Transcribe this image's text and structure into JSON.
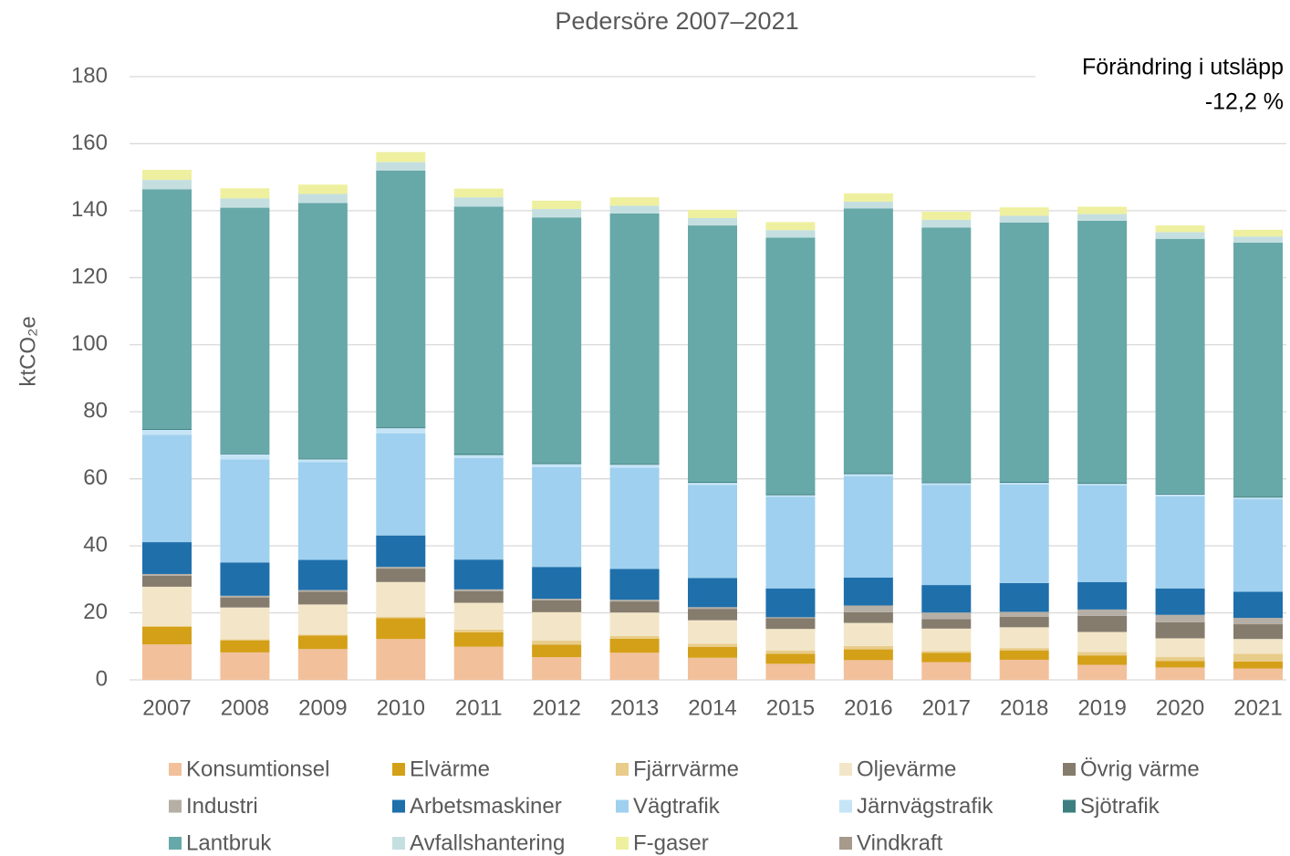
{
  "chart_data": {
    "type": "bar",
    "stacked": true,
    "title": "Pedersöre 2007–2021",
    "y_label": "ktCO₂e",
    "annotation": [
      "Förändring i utsläpp",
      "-12,2 %"
    ],
    "categories": [
      "2007",
      "2008",
      "2009",
      "2010",
      "2011",
      "2012",
      "2013",
      "2014",
      "2015",
      "2016",
      "2017",
      "2018",
      "2019",
      "2020",
      "2021"
    ],
    "ylim": [
      0,
      180
    ],
    "yticks": [
      0,
      20,
      40,
      60,
      80,
      100,
      120,
      140,
      160,
      180
    ],
    "grid": true,
    "legend": "bottom",
    "series": [
      {
        "name": "Konsumtionsel",
        "color": "#f2c09b",
        "values": [
          10.6,
          8.2,
          9.2,
          12.2,
          9.9,
          6.8,
          8.1,
          6.6,
          4.8,
          5.9,
          5.3,
          6.0,
          4.5,
          3.7,
          3.4
        ]
      },
      {
        "name": "Elvärme",
        "color": "#d4a017",
        "values": [
          5.2,
          3.6,
          4.0,
          6.2,
          4.3,
          3.7,
          4.2,
          3.2,
          3.0,
          3.2,
          2.8,
          2.8,
          2.8,
          1.9,
          2.1
        ]
      },
      {
        "name": "Fjärrvärme",
        "color": "#e8cc8a",
        "values": [
          0.3,
          0.3,
          0.3,
          0.4,
          0.8,
          1.2,
          0.8,
          1.0,
          1.0,
          1.0,
          0.5,
          0.7,
          1.0,
          1.2,
          2.3
        ]
      },
      {
        "name": "Oljevärme",
        "color": "#f3e6c8",
        "values": [
          11.7,
          9.5,
          9.0,
          10.4,
          8.0,
          8.5,
          7.0,
          7.0,
          6.4,
          6.9,
          6.7,
          6.2,
          6.0,
          5.6,
          4.4
        ]
      },
      {
        "name": "Övrig värme",
        "color": "#857c6e",
        "values": [
          3.3,
          3.0,
          3.8,
          4.0,
          3.5,
          3.5,
          3.3,
          3.4,
          3.2,
          3.2,
          2.8,
          3.1,
          4.8,
          4.8,
          4.4
        ]
      },
      {
        "name": "Industri",
        "color": "#b5afa5",
        "values": [
          0.5,
          0.5,
          0.5,
          0.5,
          0.5,
          0.5,
          0.5,
          0.5,
          0.3,
          2.0,
          2.0,
          1.5,
          1.9,
          2.2,
          1.9
        ]
      },
      {
        "name": "Arbetsmaskiner",
        "color": "#1f6fab",
        "values": [
          9.5,
          9.9,
          9.0,
          9.4,
          8.9,
          9.5,
          9.2,
          8.7,
          8.6,
          8.3,
          8.2,
          8.6,
          8.2,
          7.9,
          7.8
        ]
      },
      {
        "name": "Vägtrafik",
        "color": "#9fd0ef",
        "values": [
          32.0,
          30.8,
          29.2,
          30.5,
          30.3,
          29.8,
          30.2,
          27.8,
          27.3,
          30.3,
          29.9,
          29.4,
          28.8,
          27.5,
          27.6
        ]
      },
      {
        "name": "Järnvägstrafik",
        "color": "#c5e5f7",
        "values": [
          1.5,
          1.5,
          0.8,
          1.5,
          0.9,
          0.9,
          0.9,
          0.6,
          0.5,
          0.6,
          0.5,
          0.5,
          0.5,
          0.5,
          0.5
        ]
      },
      {
        "name": "Sjötrafik",
        "color": "#3d7f80",
        "values": [
          0.3,
          0.3,
          0.3,
          0.3,
          0.3,
          0.3,
          0.3,
          0.3,
          0.3,
          0.3,
          0.3,
          0.3,
          0.3,
          0.3,
          0.3
        ]
      },
      {
        "name": "Lantbruk",
        "color": "#67a8a8",
        "values": [
          71.5,
          73.3,
          76.2,
          76.6,
          73.8,
          73.3,
          74.7,
          76.5,
          76.6,
          79.0,
          76.0,
          77.4,
          78.2,
          76.0,
          75.8
        ]
      },
      {
        "name": "Avfallshantering",
        "color": "#c5dfe0",
        "values": [
          2.8,
          2.8,
          2.7,
          2.5,
          2.8,
          2.5,
          2.3,
          2.2,
          2.2,
          2.0,
          2.3,
          2.0,
          2.0,
          2.0,
          1.8
        ]
      },
      {
        "name": "F-gaser",
        "color": "#eef0a0",
        "values": [
          3.0,
          3.0,
          2.8,
          3.0,
          2.6,
          2.5,
          2.5,
          2.5,
          2.4,
          2.5,
          2.4,
          2.5,
          2.2,
          2.0,
          2.0
        ]
      },
      {
        "name": "Vindkraft",
        "color": "#a59a8c",
        "values": [
          0,
          0,
          0,
          0,
          0,
          0,
          0,
          0,
          0,
          0,
          0,
          0,
          0,
          0,
          0
        ]
      }
    ]
  }
}
